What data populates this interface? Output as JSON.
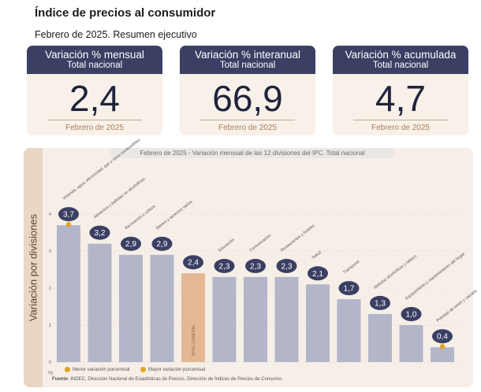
{
  "header": {
    "title": "Índice de precios al consumidor",
    "subtitle": "Febrero de 2025. Resumen ejecutivo"
  },
  "cards": [
    {
      "title": "Variación % mensual",
      "scope": "Total nacional",
      "value": "2,4",
      "period": "Febrero de 2025"
    },
    {
      "title": "Variación % interanual",
      "scope": "Total nacional",
      "value": "66,9",
      "period": "Febrero de 2025"
    },
    {
      "title": "Variación % acumulada",
      "scope": "Total nacional",
      "value": "4,7",
      "period": "Febrero de 2025"
    }
  ],
  "colors": {
    "card_header": "#3a3f63",
    "bar": "#b3b6c9",
    "bar_total": "#e4b894",
    "marker": "#e6a31e",
    "badge": "#3a3f63"
  },
  "chart_data": {
    "type": "bar",
    "title": "Febrero de 2025 - Variación mensual de las 12 divisiones del IPC. Total nacional",
    "ylabel": "Variación por divisiones",
    "y_unit": "%",
    "ylim": [
      0,
      4
    ],
    "yticks": [
      0,
      1,
      2,
      3,
      4
    ],
    "categories": [
      "Vivienda, agua, electricidad, gas y otros combustibles",
      "Alimentos y bebidas no alcohólicas",
      "Recreación y cultura",
      "Bienes y servicios varios",
      "NIVEL GENERAL",
      "Educación",
      "Comunicación",
      "Restaurantes y hoteles",
      "Salud",
      "Transporte",
      "Bebidas alcohólicas y tabaco",
      "Equipamiento y mantenimiento del hogar",
      "Prendas de vestir y calzado"
    ],
    "values": [
      3.7,
      3.2,
      2.9,
      2.9,
      2.4,
      2.3,
      2.3,
      2.3,
      2.1,
      1.7,
      1.3,
      1.0,
      0.4
    ],
    "value_labels": [
      "3,7",
      "3,2",
      "2,9",
      "2,9",
      "2,4",
      "2,3",
      "2,3",
      "2,3",
      "2,1",
      "1,7",
      "1,3",
      "1,0",
      "0,4"
    ],
    "highlight_index": 4,
    "max_index": 0,
    "min_index": 12,
    "legend": [
      {
        "label": "Menor variación porcentual",
        "color": "#e6a31e"
      },
      {
        "label": "Mayor variación porcentual",
        "color": "#e6a31e"
      }
    ],
    "grid": true
  },
  "footer": {
    "source_label": "Fuente:",
    "source_text": "INDEC, Dirección Nacional de Estadísticas de Precios. Dirección de Índices de Precios de Consumo."
  }
}
